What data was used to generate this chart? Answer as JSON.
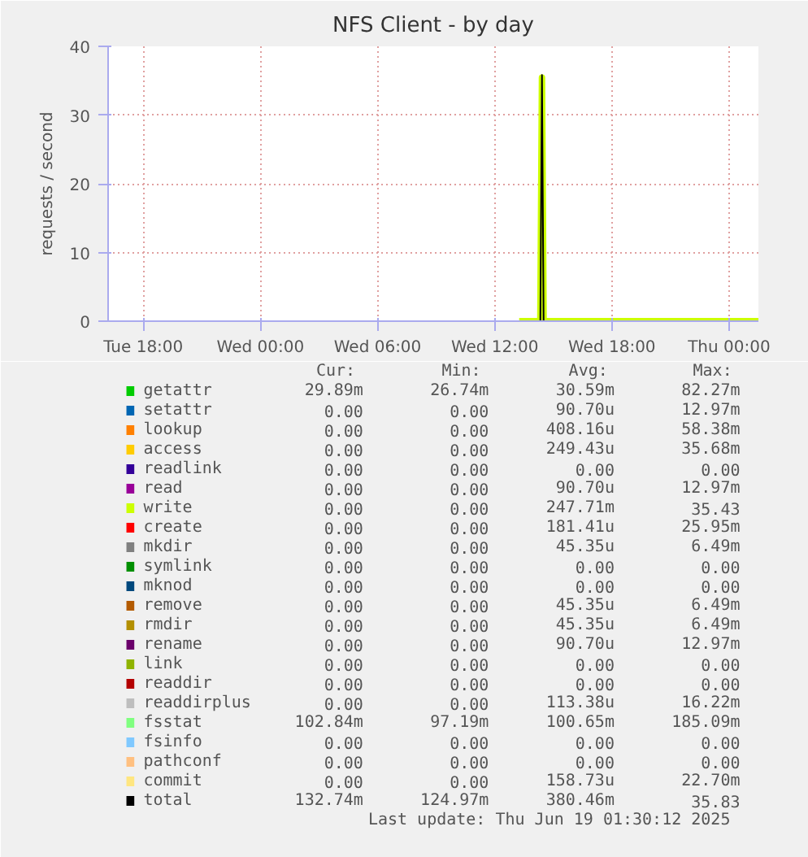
{
  "chart_data": {
    "type": "line",
    "title": "NFS Client - by day",
    "ylabel": "requests / second",
    "x": [
      "2025-06-18T13:15",
      "2025-06-18T14:20",
      "2025-06-18T14:25",
      "2025-06-18T14:30",
      "2025-06-19T01:30"
    ],
    "xlim": [
      "2025-06-17T16:12",
      "2025-06-19T01:30"
    ],
    "xticks": [
      {
        "value": "2025-06-17T18:00",
        "label": "Tue 18:00"
      },
      {
        "value": "2025-06-18T00:00",
        "label": "Wed 00:00"
      },
      {
        "value": "2025-06-18T06:00",
        "label": "Wed 06:00"
      },
      {
        "value": "2025-06-18T12:00",
        "label": "Wed 12:00"
      },
      {
        "value": "2025-06-18T18:00",
        "label": "Wed 18:00"
      },
      {
        "value": "2025-06-19T00:00",
        "label": "Thu 00:00"
      }
    ],
    "ylim": [
      0,
      40
    ],
    "yticks": [
      0,
      10,
      20,
      30,
      40
    ],
    "grid": true,
    "legend": "bottom",
    "marker": "none",
    "line_style": "solid",
    "series": [
      {
        "name": "getattr",
        "color": "#00cc00",
        "values": [
          null,
          null,
          null,
          null,
          null
        ]
      },
      {
        "name": "setattr",
        "color": "#0066b3",
        "values": [
          null,
          null,
          null,
          null,
          null
        ]
      },
      {
        "name": "lookup",
        "color": "#ff8000",
        "values": [
          null,
          null,
          null,
          null,
          null
        ]
      },
      {
        "name": "access",
        "color": "#ffcc00",
        "values": [
          null,
          null,
          null,
          null,
          null
        ]
      },
      {
        "name": "readlink",
        "color": "#330099",
        "values": [
          null,
          null,
          null,
          null,
          null
        ]
      },
      {
        "name": "read",
        "color": "#990099",
        "values": [
          null,
          null,
          null,
          null,
          null
        ]
      },
      {
        "name": "write",
        "color": "#ccff00",
        "values": [
          0,
          0,
          35.43,
          0,
          0
        ]
      },
      {
        "name": "create",
        "color": "#ff0000",
        "values": [
          null,
          null,
          null,
          null,
          null
        ]
      },
      {
        "name": "mkdir",
        "color": "#808080",
        "values": [
          null,
          null,
          null,
          null,
          null
        ]
      },
      {
        "name": "symlink",
        "color": "#008f00",
        "values": [
          null,
          null,
          null,
          null,
          null
        ]
      },
      {
        "name": "mknod",
        "color": "#00487d",
        "values": [
          null,
          null,
          null,
          null,
          null
        ]
      },
      {
        "name": "remove",
        "color": "#b35a00",
        "values": [
          null,
          null,
          null,
          null,
          null
        ]
      },
      {
        "name": "rmdir",
        "color": "#b38f00",
        "values": [
          null,
          null,
          null,
          null,
          null
        ]
      },
      {
        "name": "rename",
        "color": "#6b006b",
        "values": [
          null,
          null,
          null,
          null,
          null
        ]
      },
      {
        "name": "link",
        "color": "#8fb300",
        "values": [
          null,
          null,
          null,
          null,
          null
        ]
      },
      {
        "name": "readdir",
        "color": "#b30000",
        "values": [
          null,
          null,
          null,
          null,
          null
        ]
      },
      {
        "name": "readdirplus",
        "color": "#bebebe",
        "values": [
          null,
          null,
          null,
          null,
          null
        ]
      },
      {
        "name": "fsstat",
        "color": "#80ff80",
        "values": [
          null,
          null,
          null,
          null,
          null
        ]
      },
      {
        "name": "fsinfo",
        "color": "#80c9ff",
        "values": [
          null,
          null,
          null,
          null,
          null
        ]
      },
      {
        "name": "pathconf",
        "color": "#ffc080",
        "values": [
          null,
          null,
          null,
          null,
          null
        ]
      },
      {
        "name": "commit",
        "color": "#ffe680",
        "values": [
          null,
          null,
          null,
          null,
          null
        ]
      },
      {
        "name": "total",
        "color": "#000000",
        "values": [
          0,
          0,
          35.83,
          0,
          0
        ]
      }
    ],
    "annotations": [
      "Cur:",
      "Min:",
      "Avg:",
      "Max:",
      "29.89m",
      "26.74m",
      "30.59m",
      "82.27m",
      "0.00",
      "0.00",
      "90.70u",
      "12.97m",
      "0.00",
      "0.00",
      "408.16u",
      "58.38m",
      "0.00",
      "0.00",
      "249.43u",
      "35.68m",
      "0.00",
      "0.00",
      "0.00",
      "0.00",
      "0.00",
      "0.00",
      "90.70u",
      "12.97m",
      "0.00",
      "0.00",
      "247.71m",
      "35.43",
      "0.00",
      "0.00",
      "181.41u",
      "25.95m",
      "0.00",
      "0.00",
      "45.35u",
      "6.49m",
      "0.00",
      "0.00",
      "0.00",
      "0.00",
      "0.00",
      "0.00",
      "0.00",
      "0.00",
      "0.00",
      "0.00",
      "45.35u",
      "6.49m",
      "0.00",
      "0.00",
      "45.35u",
      "6.49m",
      "0.00",
      "0.00",
      "90.70u",
      "12.97m",
      "0.00",
      "0.00",
      "0.00",
      "0.00",
      "0.00",
      "0.00",
      "0.00",
      "0.00",
      "0.00",
      "0.00",
      "113.38u",
      "16.22m",
      "102.84m",
      "97.19m",
      "100.65m",
      "185.09m",
      "0.00",
      "0.00",
      "0.00",
      "0.00",
      "0.00",
      "0.00",
      "0.00",
      "0.00",
      "0.00",
      "0.00",
      "158.73u",
      "22.70m",
      "132.74m",
      "124.97m",
      "380.46m",
      "35.83",
      "Last update:  Thu Jun 19 01:30:12 2025"
    ]
  }
}
